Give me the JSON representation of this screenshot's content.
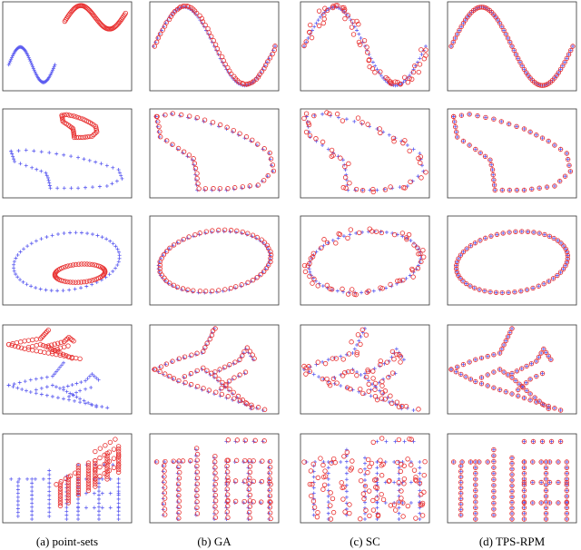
{
  "captions": [
    "(a) point-sets",
    "(b) GA",
    "(c) SC",
    "(d) TPS-RPM"
  ]
}
